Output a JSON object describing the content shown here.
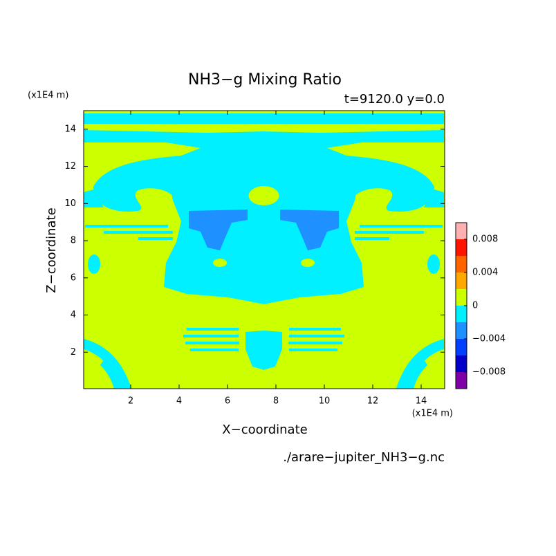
{
  "chart_data": {
    "type": "contour",
    "title": "NH3−g Mixing Ratio",
    "subtitle": "t=9120.0 y=0.0",
    "x_label": "X−coordinate",
    "y_label": "Z−coordinate",
    "x_unit": "(x1E4 m)",
    "y_unit": "(x1E4 m)",
    "footer": "./arare−jupiter_NH3−g.nc",
    "xlim": [
      0,
      15
    ],
    "ylim": [
      0,
      15
    ],
    "xticks": [
      2,
      4,
      6,
      8,
      10,
      12,
      14
    ],
    "yticks": [
      2,
      4,
      6,
      8,
      10,
      12,
      14
    ],
    "colorbar": {
      "levels": [
        -0.01,
        -0.008,
        -0.006,
        -0.004,
        -0.002,
        0,
        0.002,
        0.004,
        0.006,
        0.008,
        0.01
      ],
      "colors": [
        "#8000a8",
        "#0000c8",
        "#0040ff",
        "#1e90ff",
        "#00f0ff",
        "#ccff00",
        "#ffa800",
        "#ff6400",
        "#ff1400",
        "#ffb0b0"
      ],
      "ticks": [
        -0.008,
        -0.004,
        0,
        0.004,
        0.008
      ]
    }
  }
}
